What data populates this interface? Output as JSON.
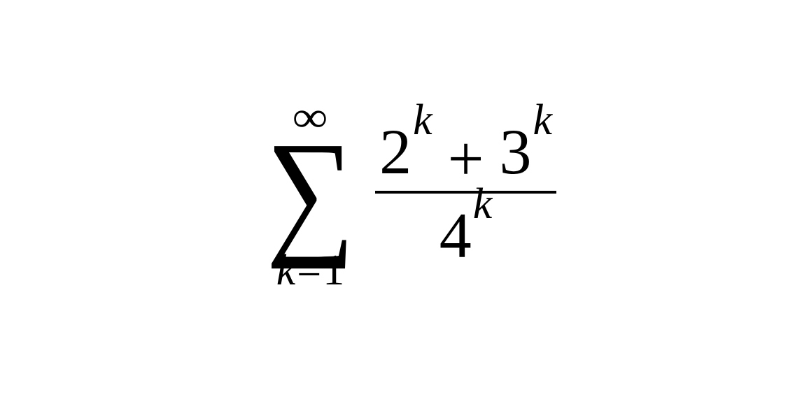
{
  "formula": {
    "sum": {
      "upper": "∞",
      "sigma": "∑",
      "lower_var": "k",
      "lower_eq": "=",
      "lower_from": "1"
    },
    "fraction": {
      "numerator": {
        "term1_base": "2",
        "term1_exp": "k",
        "plus": "+",
        "term2_base": "3",
        "term2_exp": "k"
      },
      "denominator": {
        "base": "4",
        "exp": "k"
      }
    },
    "colors": {
      "text": "#000000",
      "background": "#ffffff",
      "rule": "#000000"
    },
    "font": {
      "family": "Times-like serif (italic for variables)",
      "base_size_pt": 92,
      "exp_size_pt": 62,
      "limit_size_pt": 62,
      "sigma_size_pt": 198
    }
  }
}
